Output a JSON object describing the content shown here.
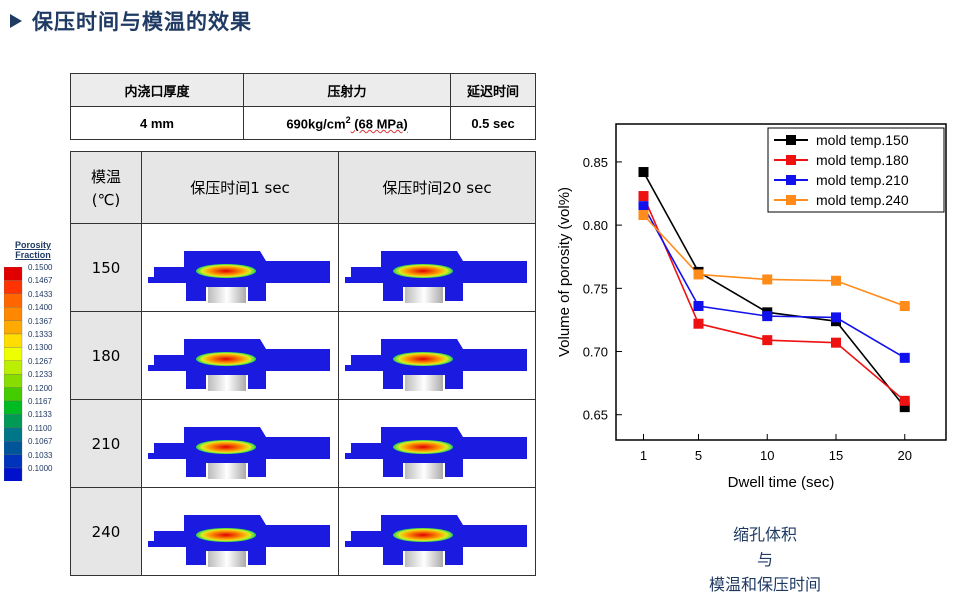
{
  "title": "保压时间与模温的效果",
  "params_table": {
    "headers": [
      "内浇口厚度",
      "压射力",
      "延迟时间"
    ],
    "values": [
      "4 mm",
      "690kg/cm",
      "2",
      " (68 MPa)",
      "0.5 sec"
    ]
  },
  "results_table": {
    "header_temp": "模温",
    "header_unit": "(℃)",
    "header_1s": "保压时间1 sec",
    "header_20s": "保压时间20 sec",
    "temps": [
      "150",
      "180",
      "210",
      "240"
    ]
  },
  "legend": {
    "title_line1": "Porosity",
    "title_line2": "Fraction",
    "labels": [
      "0.1500",
      "0.1467",
      "0.1433",
      "0.1400",
      "0.1367",
      "0.1333",
      "0.1300",
      "0.1267",
      "0.1233",
      "0.1200",
      "0.1167",
      "0.1133",
      "0.1100",
      "0.1067",
      "0.1033",
      "0.1000"
    ],
    "colors": [
      "#e00000",
      "#ff3300",
      "#ff6600",
      "#ff8800",
      "#ffaa00",
      "#ffdd00",
      "#eeff00",
      "#bbee00",
      "#88dd00",
      "#44cc00",
      "#00bb22",
      "#009955",
      "#007788",
      "#005599",
      "#0033bb",
      "#0011cc"
    ]
  },
  "chart_data": {
    "type": "line",
    "xlabel": "Dwell time (sec)",
    "ylabel": "Volume of porosity (vol%)",
    "x": [
      1,
      5,
      10,
      15,
      20
    ],
    "xticks": [
      "1",
      "5",
      "10",
      "15",
      "20"
    ],
    "ylim": [
      0.63,
      0.88
    ],
    "yticks": [
      "0.65",
      "0.70",
      "0.75",
      "0.80",
      "0.85"
    ],
    "legend_position": "top-right",
    "series": [
      {
        "name": "mold temp.150",
        "color": "#000000",
        "values": [
          0.842,
          0.763,
          0.731,
          0.724,
          0.656
        ]
      },
      {
        "name": "mold temp.180",
        "color": "#ee1111",
        "values": [
          0.823,
          0.722,
          0.709,
          0.707,
          0.661
        ]
      },
      {
        "name": "mold temp.210",
        "color": "#1111ee",
        "values": [
          0.815,
          0.736,
          0.728,
          0.727,
          0.695
        ]
      },
      {
        "name": "mold temp.240",
        "color": "#ff8c1a",
        "values": [
          0.808,
          0.761,
          0.757,
          0.756,
          0.736
        ]
      }
    ]
  },
  "caption": [
    "缩孔体积",
    "与",
    "模温和保压时间"
  ]
}
